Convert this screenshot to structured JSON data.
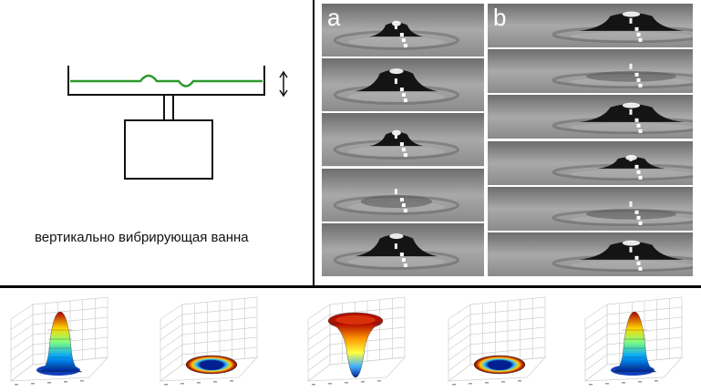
{
  "diagram": {
    "caption": "вертикально вибрирующая ванна",
    "panel_a_label": "a",
    "panel_b_label": "b",
    "liquid_color": "#2e9a2e",
    "frame_counts": {
      "column_a": 5,
      "column_b": 6,
      "surface_plots": 5
    }
  }
}
